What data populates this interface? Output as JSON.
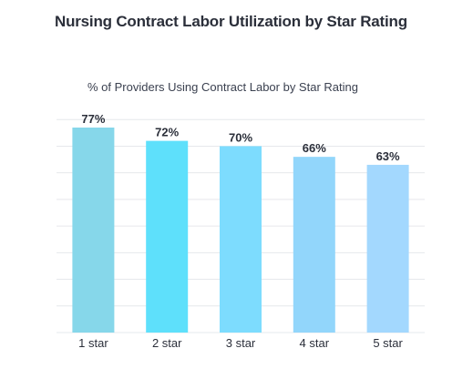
{
  "chart_data": {
    "type": "bar",
    "title": "Nursing Contract Labor Utilization by Star Rating",
    "subtitle": "% of Providers Using Contract Labor by Star Rating",
    "categories": [
      "1 star",
      "2 star",
      "3 star",
      "4 star",
      "5 star"
    ],
    "values": [
      77,
      72,
      70,
      66,
      63
    ],
    "value_labels": [
      "77%",
      "72%",
      "70%",
      "66%",
      "63%"
    ],
    "bar_colors": [
      "#86d7ea",
      "#5ee0fb",
      "#7ddcfe",
      "#92d6fb",
      "#a3d8fe"
    ],
    "ylim": [
      0,
      80
    ],
    "grid": true,
    "legend": "none"
  }
}
